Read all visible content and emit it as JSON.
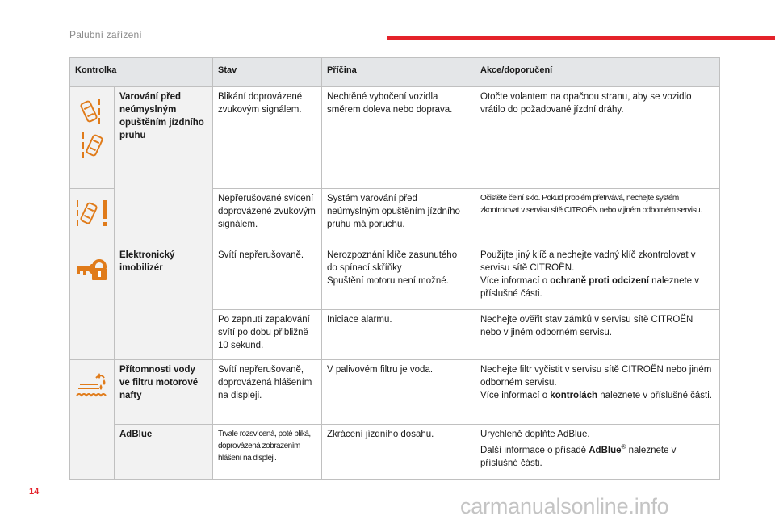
{
  "header": {
    "title": "Palubní zařízení",
    "accent_color": "#e4222a"
  },
  "page_number": "14",
  "watermark": "carmanualsonline.info",
  "table": {
    "columns": [
      "Kontrolka",
      "Stav",
      "Příčina",
      "Akce/doporučení"
    ],
    "lane": {
      "name": "Varování před neúmyslným opuštěním jízdního pruhu",
      "rows": [
        {
          "stav": "Blikání doprovázené zvukovým signálem.",
          "pricina": "Nechtěné vybočení vozidla směrem doleva nebo doprava.",
          "akce": "Otočte volantem na opačnou stranu, aby se vozidlo vrátilo do požadované jízdní dráhy."
        },
        {
          "stav": "Nepřerušované svícení doprovázené zvukovým signálem.",
          "pricina": "Systém varování před neúmyslným opuštěním jízdního pruhu má poruchu.",
          "akce": "Očistěte čelní sklo. Pokud problém přetrvává, nechejte systém zkontrolovat v servisu sítě CITROËN nebo v jiném odborném servisu."
        }
      ]
    },
    "immobilizer": {
      "name": "Elektronický imobilizér",
      "rows": [
        {
          "stav": "Svítí nepřerušovaně.",
          "pricina_1": "Nerozpoznání klíče zasunutého do spínací skříňky",
          "pricina_2": "Spuštění motoru není možné.",
          "akce_1": "Použijte jiný klíč a nechejte vadný klíč zkontrolovat v servisu sítě CITROËN.",
          "akce_2a": "Více informací o ",
          "akce_2b": "ochraně proti odcizení",
          "akce_2c": " naleznete v příslušné části."
        },
        {
          "stav": "Po zapnutí zapalování svítí po dobu přibližně 10 sekund.",
          "pricina": "Iniciace alarmu.",
          "akce": "Nechejte ověřit stav zámků v servisu sítě CITROËN nebo v jiném odborném servisu."
        }
      ]
    },
    "diesel": {
      "name": "Přítomnosti vody ve filtru motorové nafty",
      "stav": "Svítí nepřerušovaně, doprovázená hlášením na displeji.",
      "pricina": "V palivovém filtru je voda.",
      "akce_1": "Nechejte filtr vyčistit v servisu sítě CITROËN nebo jiném odborném servisu.",
      "akce_2a": "Více informací o ",
      "akce_2b": "kontrolách",
      "akce_2c": " naleznete v příslušné části."
    },
    "adblue": {
      "name": "AdBlue",
      "stav": "Trvale rozsvícená, poté bliká, doprovázená zobrazením hlášení na displeji.",
      "pricina": "Zkrácení jízdního dosahu.",
      "akce_1": "Urychleně doplňte AdBlue.",
      "akce_2a": "Další informace o přísadě ",
      "akce_2b": "AdBlue",
      "akce_2sup": "®",
      "akce_2c": " naleznete v příslušné části."
    }
  },
  "icon_color": "#e07b1a"
}
